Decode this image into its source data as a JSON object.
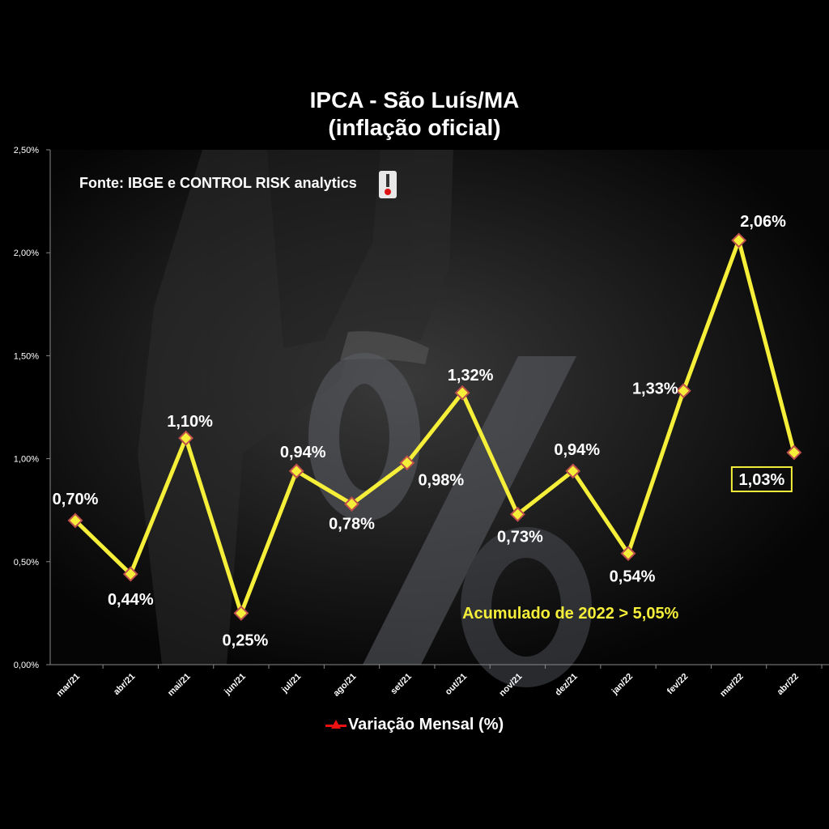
{
  "chart_data": {
    "type": "line",
    "title": "IPCA - São Luís/MA",
    "subtitle": "(inflação oficial)",
    "source": "Fonte: IBGE e CONTROL RISK analytics",
    "annotation": "Acumulado  de 2022 > 5,05%",
    "categories": [
      "mar/21",
      "abr/21",
      "mai/21",
      "jun/21",
      "jul/21",
      "ago/21",
      "set/21",
      "out/21",
      "nov/21",
      "dez/21",
      "jan/22",
      "fev/22",
      "mar/22",
      "abr/22"
    ],
    "series": [
      {
        "name": "Variação Mensal (%)",
        "values": [
          0.7,
          0.44,
          1.1,
          0.25,
          0.94,
          0.78,
          0.98,
          1.32,
          0.73,
          0.94,
          0.54,
          1.33,
          2.06,
          1.03
        ],
        "labels": [
          "0,70%",
          "0,44%",
          "1,10%",
          "0,25%",
          "0,94%",
          "0,78%",
          "0,98%",
          "1,32%",
          "0,73%",
          "0,94%",
          "0,54%",
          "1,33%",
          "2,06%",
          "1,03%"
        ]
      }
    ],
    "yticks": [
      0,
      0.5,
      1.0,
      1.5,
      2.0,
      2.5
    ],
    "ytick_labels": [
      "0,00%",
      "0,50%",
      "1,00%",
      "1,50%",
      "2,00%",
      "2,50%"
    ],
    "ylim": [
      0,
      2.5
    ],
    "highlighted_label": "1,03%",
    "legend_position": "bottom",
    "grid": false,
    "colors": {
      "line": "#f5ef3a",
      "marker_fill": "#f5ef3a",
      "marker_edge": "#c0504d",
      "legend_marker": "#e11111",
      "background": "#000000"
    }
  },
  "background_graphic": {
    "description_icon": "percent-symbol"
  }
}
